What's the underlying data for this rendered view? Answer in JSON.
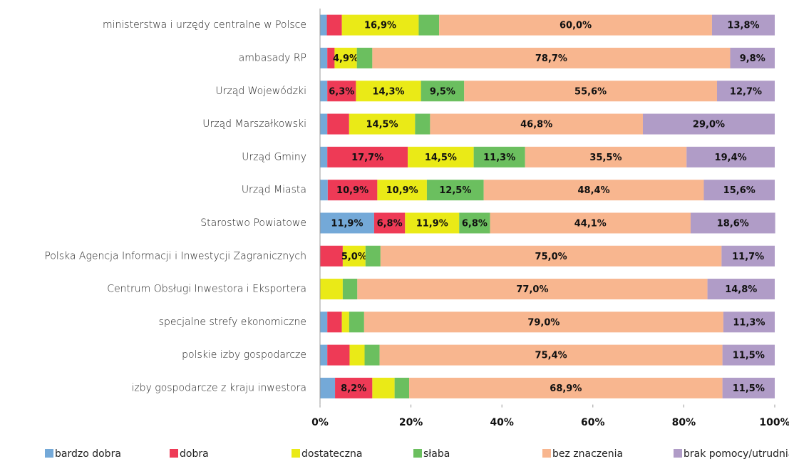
{
  "chart_data": {
    "type": "stacked-bar-horizontal",
    "categories": [
      "ministerstwa  i urzędy centralne w Polsce",
      "ambasady RP",
      "Urząd Wojewódzki",
      "Urząd Marszałkowski",
      "Urząd Gminy",
      "Urząd Miasta",
      "Starostwo Powiatowe",
      "Polska Agencja Informacji i Inwestycji Zagranicznych",
      "Centrum Obsługi Inwestora i Eksportera",
      "specjalne strefy ekonomiczne",
      "polskie izby gospodarcze",
      "izby gospodarcze z kraju inwestora"
    ],
    "series": [
      {
        "name": "bardzo dobra",
        "color": "#74a9d8",
        "values": [
          1.5,
          1.6,
          1.6,
          1.6,
          1.6,
          1.7,
          11.9,
          0,
          0,
          1.6,
          1.6,
          3.3
        ],
        "value_labels": [
          null,
          null,
          null,
          null,
          null,
          null,
          "11,9%",
          null,
          null,
          null,
          null,
          null
        ]
      },
      {
        "name": "dobra",
        "color": "#ee3a56",
        "values": [
          3.3,
          1.6,
          6.3,
          4.8,
          17.7,
          10.9,
          6.8,
          5.0,
          0,
          3.2,
          4.9,
          8.2
        ],
        "value_labels": [
          null,
          null,
          "6,3%",
          null,
          "17,7%",
          "10,9%",
          "6,8%",
          null,
          null,
          null,
          null,
          "8,2%"
        ]
      },
      {
        "name": "dostateczna",
        "color": "#eaea17",
        "values": [
          16.9,
          4.9,
          14.3,
          14.5,
          14.5,
          10.9,
          11.9,
          5.0,
          5.0,
          1.6,
          3.3,
          4.9
        ],
        "value_labels": [
          "16,9%",
          "4,9%",
          "14,3%",
          "14,5%",
          "14,5%",
          "10,9%",
          "11,9%",
          "5,0%",
          null,
          null,
          null,
          null
        ]
      },
      {
        "name": "słaba",
        "color": "#6bbf5f",
        "values": [
          4.5,
          3.4,
          9.5,
          3.3,
          11.3,
          12.5,
          6.8,
          3.3,
          3.2,
          3.3,
          3.3,
          3.2
        ],
        "value_labels": [
          null,
          null,
          "9,5%",
          null,
          "11,3%",
          "12,5%",
          "6,8%",
          null,
          null,
          null,
          null,
          null
        ]
      },
      {
        "name": "bez znaczenia",
        "color": "#f8b68f",
        "values": [
          60.0,
          78.7,
          55.6,
          46.8,
          35.5,
          48.4,
          44.1,
          75.0,
          77.0,
          79.0,
          75.4,
          68.9
        ],
        "value_labels": [
          "60,0%",
          "78,7%",
          "55,6%",
          "46,8%",
          "35,5%",
          "48,4%",
          "44,1%",
          "75,0%",
          "77,0%",
          "79,0%",
          "75,4%",
          "68,9%"
        ]
      },
      {
        "name": "brak pomocy/utrudnianie",
        "color": "#b09cc7",
        "values": [
          13.8,
          9.8,
          12.7,
          29.0,
          19.4,
          15.6,
          18.6,
          11.7,
          14.8,
          11.3,
          11.5,
          11.5
        ],
        "value_labels": [
          "13,8%",
          "9,8%",
          "12,7%",
          "29,0%",
          "19,4%",
          "15,6%",
          "18,6%",
          "11,7%",
          "14,8%",
          "11,3%",
          "11,5%",
          "11,5%"
        ]
      }
    ],
    "xlim": [
      0,
      100
    ],
    "xticks": [
      {
        "value": 0,
        "label": "0%"
      },
      {
        "value": 20,
        "label": "20%"
      },
      {
        "value": 40,
        "label": "40%"
      },
      {
        "value": 60,
        "label": "60%"
      },
      {
        "value": 80,
        "label": "80%"
      },
      {
        "value": 100,
        "label": "100%"
      }
    ],
    "legend": "bottom"
  }
}
